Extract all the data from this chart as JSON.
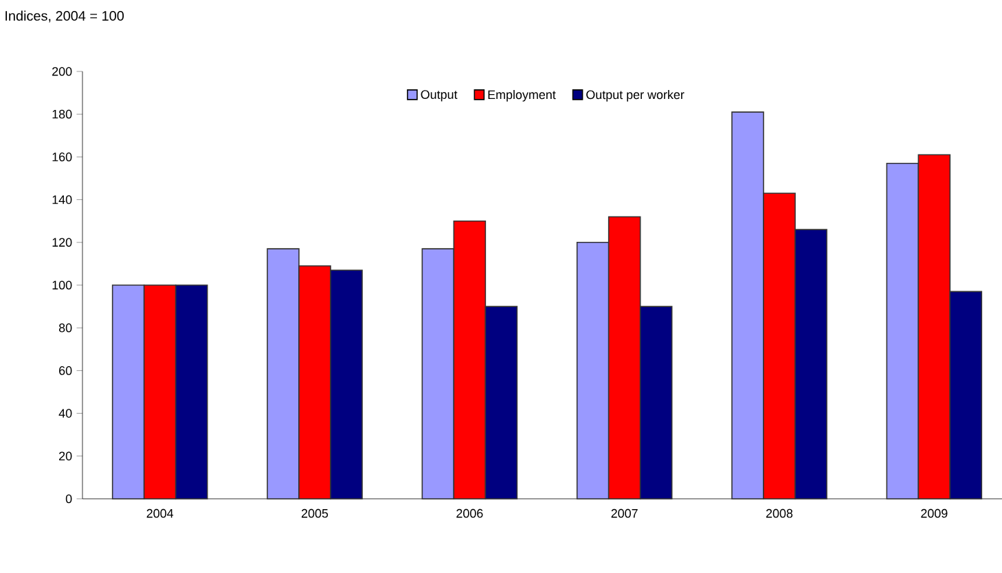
{
  "chart_data": {
    "type": "bar",
    "ylabel": "Indices, 2004 = 100",
    "categories": [
      "2004",
      "2005",
      "2006",
      "2007",
      "2008",
      "2009"
    ],
    "series": [
      {
        "name": "Output",
        "color": "#9999ff",
        "values": [
          100,
          117,
          117,
          120,
          181,
          157
        ]
      },
      {
        "name": "Employment",
        "color": "#ff0000",
        "values": [
          100,
          109,
          130,
          132,
          143,
          161
        ]
      },
      {
        "name": "Output per worker",
        "color": "#000080",
        "values": [
          100,
          107,
          90,
          90,
          126,
          97
        ]
      }
    ],
    "ylim": [
      0,
      200
    ],
    "yticks": [
      0,
      20,
      40,
      60,
      80,
      100,
      120,
      140,
      160,
      180,
      200
    ],
    "grid": false,
    "legend": "top"
  }
}
